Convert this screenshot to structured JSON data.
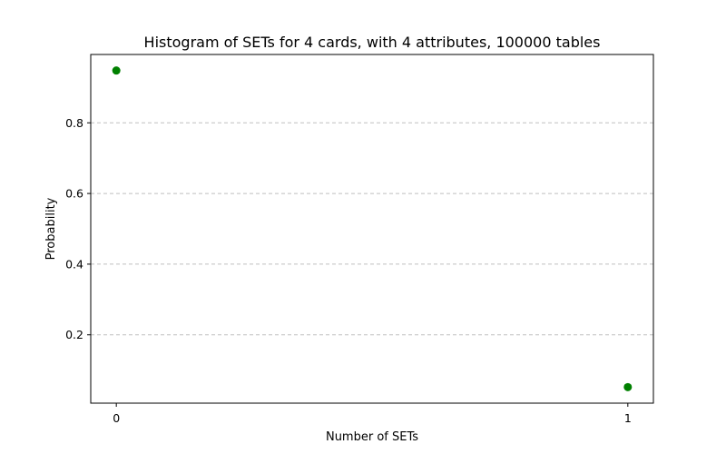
{
  "chart_data": {
    "type": "scatter",
    "title": "Histogram of SETs for 4 cards, with 4 attributes, 100000 tables",
    "xlabel": "Number of SETs",
    "ylabel": "Probability",
    "x": [
      0,
      1
    ],
    "y": [
      0.948,
      0.052
    ],
    "x_ticks": [
      0,
      1
    ],
    "y_ticks": [
      0.2,
      0.4,
      0.6,
      0.8
    ],
    "xlim": [
      -0.05,
      1.05
    ],
    "ylim": [
      0.0066,
      0.9934
    ],
    "grid": "y-dashed",
    "marker_color": "#008000"
  }
}
